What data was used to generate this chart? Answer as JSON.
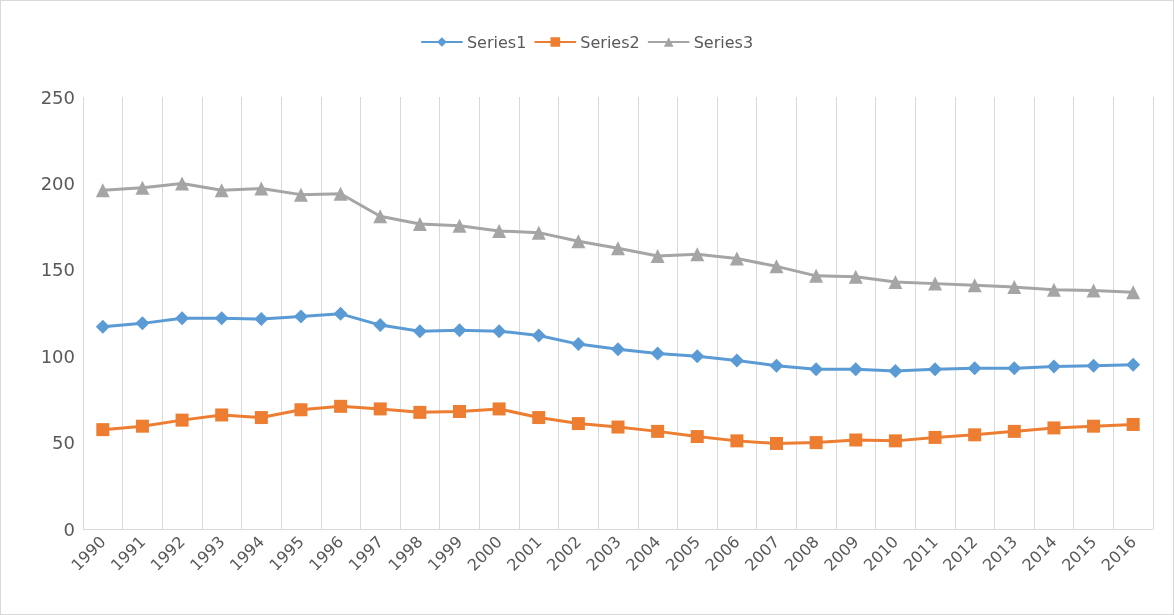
{
  "chart_data": {
    "type": "line",
    "categories": [
      "1990",
      "1991",
      "1992",
      "1993",
      "1994",
      "1995",
      "1996",
      "1997",
      "1998",
      "1999",
      "2000",
      "2001",
      "2002",
      "2003",
      "2004",
      "2005",
      "2006",
      "2007",
      "2008",
      "2009",
      "2010",
      "2011",
      "2012",
      "2013",
      "2014",
      "2015",
      "2016"
    ],
    "series": [
      {
        "name": "Series1",
        "color": "#5b9bd5",
        "marker": "diamond",
        "values": [
          117,
          119,
          122,
          122,
          121.5,
          123,
          124.5,
          118,
          114.5,
          115,
          114.5,
          112,
          107,
          104,
          101.5,
          100,
          97.5,
          94.5,
          92.5,
          92.5,
          91.5,
          92.5,
          93,
          93,
          94,
          94.5,
          95
        ]
      },
      {
        "name": "Series2",
        "color": "#ed7d31",
        "marker": "square",
        "values": [
          57.5,
          59.5,
          63,
          66,
          64.5,
          69,
          71,
          69.5,
          67.5,
          68,
          69.5,
          64.5,
          61,
          59,
          56.5,
          53.5,
          51,
          49.5,
          50,
          51.5,
          51,
          53,
          54.5,
          56.5,
          58.5,
          59.5,
          60.5
        ]
      },
      {
        "name": "Series3",
        "color": "#a5a5a5",
        "marker": "triangle",
        "values": [
          196,
          197.5,
          200,
          196,
          197,
          193.5,
          194,
          181,
          176.5,
          175.5,
          172.5,
          171.5,
          166.5,
          162.5,
          158,
          159,
          156.5,
          152,
          146.5,
          146,
          143,
          142,
          141,
          140,
          138.5,
          138,
          137
        ]
      }
    ],
    "ylim": [
      0,
      250
    ],
    "yticks": [
      0,
      50,
      100,
      150,
      200,
      250
    ],
    "grid": "x",
    "legend": "top",
    "line_style": "solid"
  }
}
